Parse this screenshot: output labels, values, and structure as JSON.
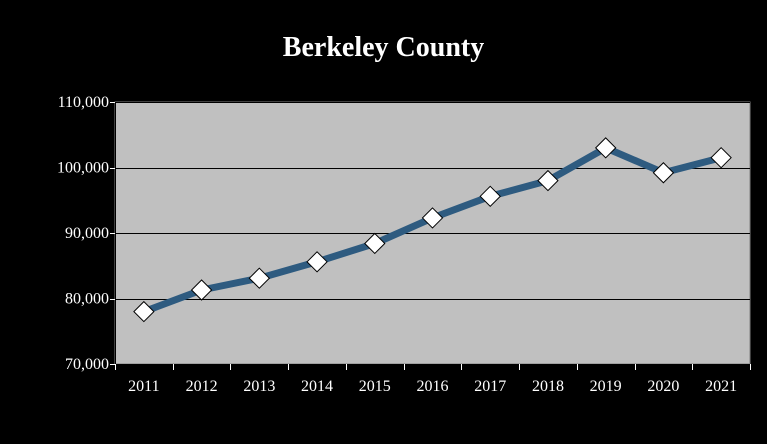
{
  "chart_data": {
    "type": "line",
    "title": "Berkeley County",
    "xlabel": "",
    "ylabel": "",
    "x": [
      "2011",
      "2012",
      "2013",
      "2014",
      "2015",
      "2016",
      "2017",
      "2018",
      "2019",
      "2020",
      "2021"
    ],
    "series": [
      {
        "values": [
          78000,
          81300,
          83100,
          85600,
          88400,
          92300,
          95600,
          98000,
          103000,
          99200,
          101500
        ]
      }
    ],
    "ylim": [
      70000,
      110000
    ],
    "yticks": [
      70000,
      80000,
      90000,
      100000,
      110000
    ],
    "ytick_labels": [
      "70,000",
      "80,000",
      "90,000",
      "100,000",
      "110,000"
    ],
    "grid": "horizontal",
    "legend": "none",
    "colors": {
      "background": "#000000",
      "plot_area": "#c0c0c0",
      "line": "#2e5b80",
      "marker_fill": "#ffffff",
      "marker_stroke": "#000000",
      "text": "#ffffff",
      "gridline": "#000000"
    }
  }
}
